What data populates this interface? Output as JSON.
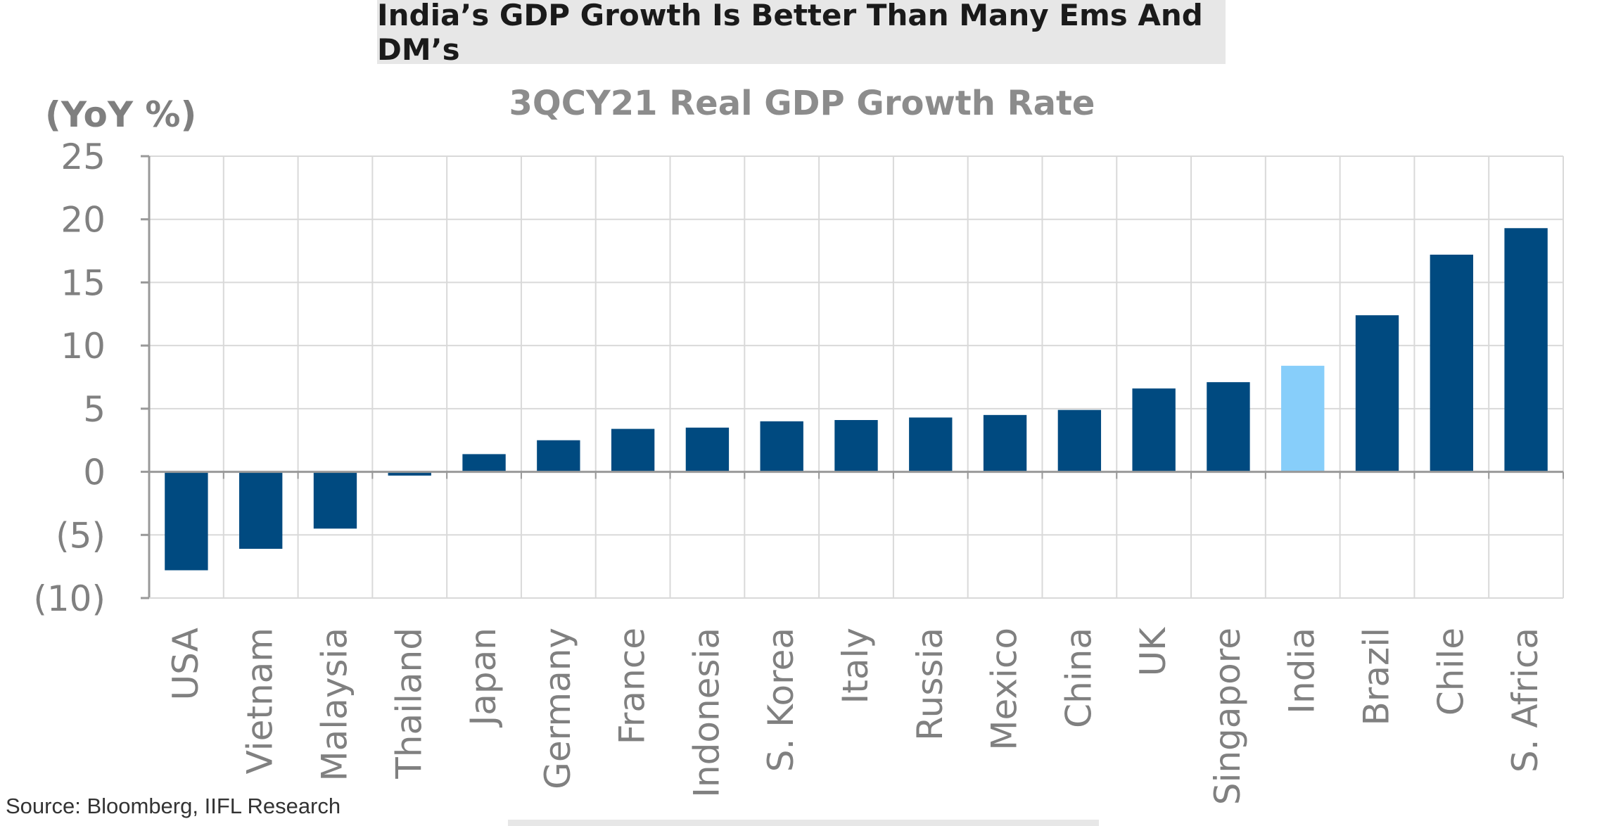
{
  "header": {
    "title": "India’s GDP Growth Is Better Than Many Ems And DM’s"
  },
  "source": "Source: Bloomberg, IIFL Research",
  "colors": {
    "bar": "#004a80",
    "highlight": "#87cefa",
    "grid": "#d9d9d9",
    "axis": "#999999",
    "text": "#808080"
  },
  "chart_data": {
    "type": "bar",
    "title": "3QCY21 Real GDP Growth Rate",
    "ylabel": "(YoY %)",
    "xlabel": "",
    "ylim": [
      -10,
      25
    ],
    "yticks": [
      25,
      20,
      15,
      10,
      5,
      0,
      -5,
      -10
    ],
    "ytick_labels": [
      "25",
      "20",
      "15",
      "10",
      "5",
      "0",
      "(5)",
      "(10)"
    ],
    "grid": true,
    "highlight_category": "India",
    "categories": [
      "USA",
      "Vietnam",
      "Malaysia",
      "Thailand",
      "Japan",
      "Germany",
      "France",
      "Indonesia",
      "S. Korea",
      "Italy",
      "Russia",
      "Mexico",
      "China",
      "UK",
      "Singapore",
      "India",
      "Brazil",
      "Chile",
      "S. Africa"
    ],
    "values": [
      -7.8,
      -6.1,
      -4.5,
      -0.3,
      1.4,
      2.5,
      3.4,
      3.5,
      4.0,
      4.1,
      4.3,
      4.5,
      4.9,
      6.6,
      7.1,
      8.4,
      12.4,
      17.2,
      19.3
    ]
  }
}
